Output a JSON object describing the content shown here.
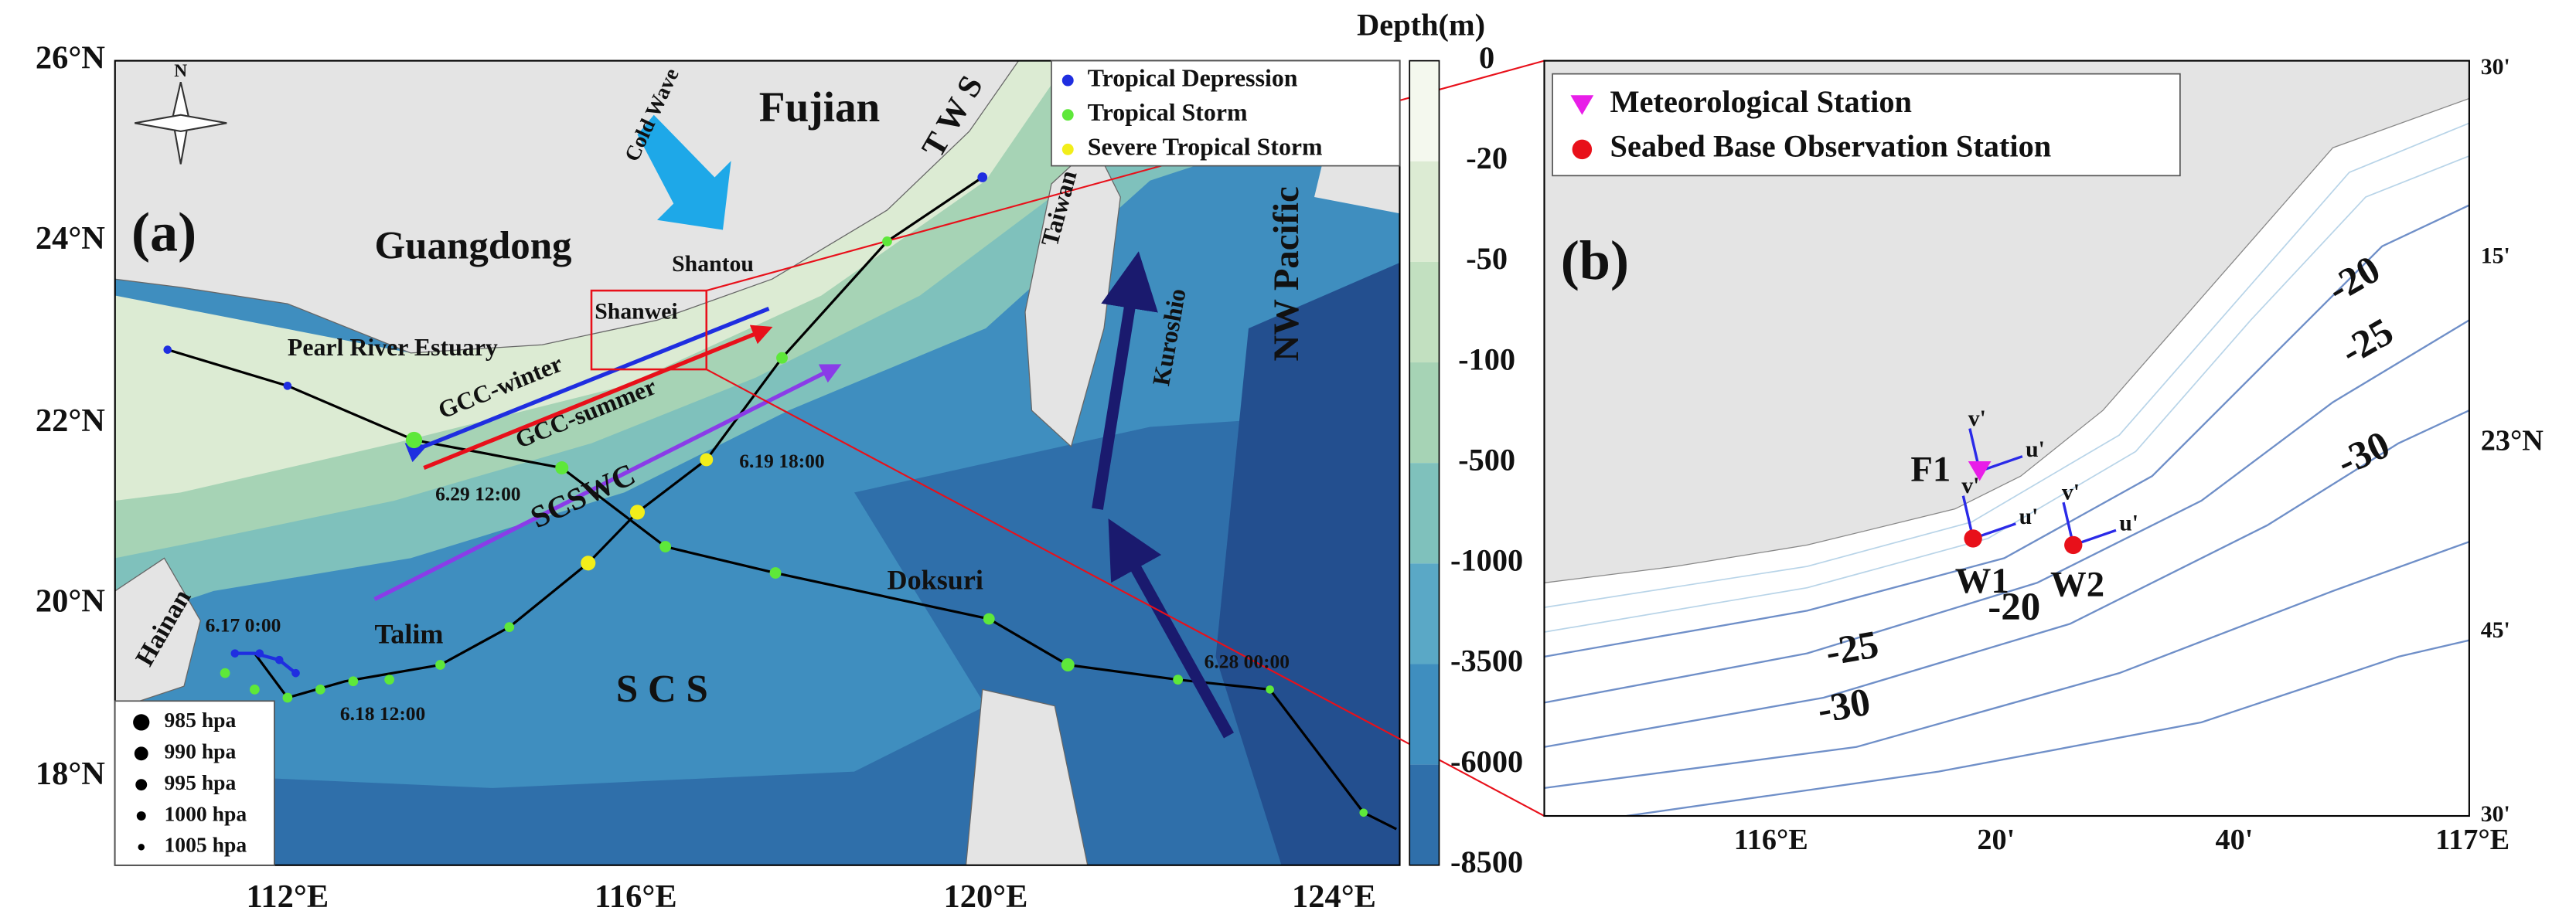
{
  "panel_a": {
    "label": "(a)",
    "colorbar_title": "Depth(m)",
    "colorbar_ticks": [
      "0",
      "-20",
      "-50",
      "-100",
      "-500",
      "-1000",
      "-3500",
      "-6000",
      "-8500"
    ],
    "lat_ticks": [
      "26°N",
      "24°N",
      "22°N",
      "20°N",
      "18°N"
    ],
    "lon_ticks": [
      "112°E",
      "116°E",
      "120°E",
      "124°E"
    ],
    "compass": "N",
    "places": [
      "Fujian",
      "Guangdong",
      "Shantou",
      "Shanwei",
      "Pearl River Estuary",
      "Taiwan",
      "NW Pacific",
      "Hainan",
      "S C S",
      "T W S",
      "Cold Wave",
      "Kuroshio"
    ],
    "currents": [
      "GCC-winter",
      "GCC-summer",
      "SCSWC"
    ],
    "typhoons": [
      "Talim",
      "Doksuri"
    ],
    "times": [
      "6.17 0:00",
      "6.18 12:00",
      "6.29 12:00",
      "6.19 18:00",
      "6.28 00:00"
    ],
    "legend": [
      {
        "name": "Tropical Depression",
        "color": "#1f2ee0"
      },
      {
        "name": "Tropical Storm",
        "color": "#5ee83a"
      },
      {
        "name": "Severe Tropical Storm",
        "color": "#f2ee1a"
      }
    ],
    "pressure_legend": [
      "985 hpa",
      "990 hpa",
      "995 hpa",
      "1000 hpa",
      "1005 hpa"
    ]
  },
  "panel_b": {
    "label": "(b)",
    "legend": [
      {
        "name": "Meteorological Station",
        "color": "#e81ee8"
      },
      {
        "name": "Seabed Base Observation Station",
        "color": "#e8101a"
      }
    ],
    "stations": [
      "F1",
      "W1",
      "W2"
    ],
    "vector_labels": [
      "u'",
      "v'"
    ],
    "contour_labels": [
      "-20",
      "-25",
      "-30",
      "-20",
      "-25",
      "-30"
    ],
    "lon_ticks": [
      "116°E",
      "20'",
      "40'",
      "117°E"
    ],
    "lat_ticks": [
      "30'",
      "15'",
      "23°N",
      "45'",
      "30'"
    ]
  }
}
